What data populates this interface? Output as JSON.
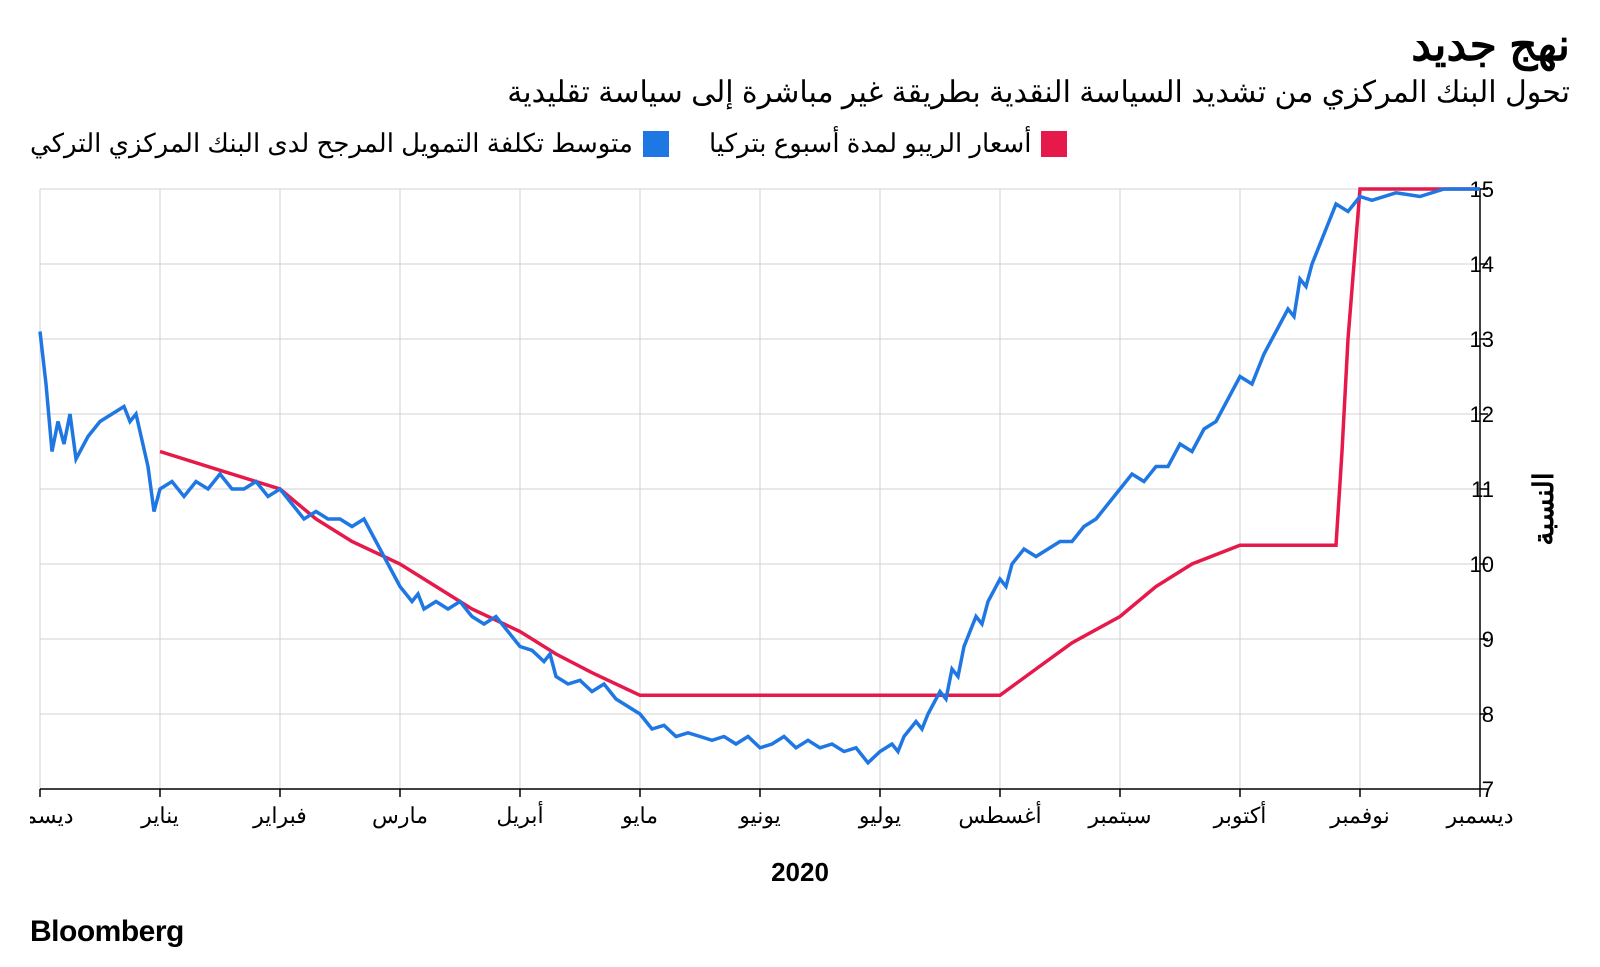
{
  "title": "نهج جديد",
  "subtitle": "تحول البنك المركزي من تشديد السياسة النقدية بطريقة غير مباشرة إلى سياسة تقليدية",
  "legend": [
    {
      "label": "أسعار الريبو لمدة أسبوع بتركيا",
      "color": "#e6194b"
    },
    {
      "label": "متوسط تكلفة التمويل المرجح لدى البنك المركزي التركي",
      "color": "#1f77e4"
    }
  ],
  "y_axis": {
    "label": "النسبة",
    "min": 7,
    "max": 15,
    "ticks": [
      7,
      8,
      9,
      10,
      11,
      12,
      13,
      14,
      15
    ],
    "label_fontsize": 28,
    "tick_fontsize": 22
  },
  "x_axis": {
    "year_label": "2020",
    "min": 0,
    "max": 12,
    "months": [
      "ديسمبر",
      "يناير",
      "فبراير",
      "مارس",
      "أبريل",
      "مايو",
      "يونيو",
      "يوليو",
      "أغسطس",
      "سبتمبر",
      "أكتوبر",
      "نوفمبر",
      "ديسمبر"
    ],
    "tick_fontsize": 22
  },
  "background_color": "#ffffff",
  "grid_color": "#d0d0d0",
  "axis_color": "#000000",
  "line_width": 3.5,
  "series": [
    {
      "name": "repo",
      "color": "#e6194b",
      "points": [
        [
          1.0,
          11.5
        ],
        [
          1.5,
          11.25
        ],
        [
          2.0,
          11.0
        ],
        [
          2.3,
          10.6
        ],
        [
          2.6,
          10.3
        ],
        [
          3.0,
          10.0
        ],
        [
          3.3,
          9.7
        ],
        [
          3.6,
          9.4
        ],
        [
          4.0,
          9.1
        ],
        [
          4.3,
          8.8
        ],
        [
          4.6,
          8.55
        ],
        [
          5.0,
          8.25
        ],
        [
          5.5,
          8.25
        ],
        [
          6.0,
          8.25
        ],
        [
          6.5,
          8.25
        ],
        [
          7.0,
          8.25
        ],
        [
          7.5,
          8.25
        ],
        [
          8.0,
          8.25
        ],
        [
          8.3,
          8.6
        ],
        [
          8.6,
          8.95
        ],
        [
          9.0,
          9.3
        ],
        [
          9.3,
          9.7
        ],
        [
          9.6,
          10.0
        ],
        [
          10.0,
          10.25
        ],
        [
          10.3,
          10.25
        ],
        [
          10.6,
          10.25
        ],
        [
          10.8,
          10.25
        ],
        [
          10.85,
          11.5
        ],
        [
          10.9,
          13.0
        ],
        [
          11.0,
          15.0
        ],
        [
          11.5,
          15.0
        ],
        [
          12.0,
          15.0
        ]
      ]
    },
    {
      "name": "wacf",
      "color": "#1f77e4",
      "points": [
        [
          0.0,
          13.1
        ],
        [
          0.05,
          12.4
        ],
        [
          0.1,
          11.5
        ],
        [
          0.15,
          11.9
        ],
        [
          0.2,
          11.6
        ],
        [
          0.25,
          12.0
        ],
        [
          0.3,
          11.4
        ],
        [
          0.4,
          11.7
        ],
        [
          0.5,
          11.9
        ],
        [
          0.6,
          12.0
        ],
        [
          0.7,
          12.1
        ],
        [
          0.75,
          11.9
        ],
        [
          0.8,
          12.0
        ],
        [
          0.9,
          11.3
        ],
        [
          0.95,
          10.7
        ],
        [
          1.0,
          11.0
        ],
        [
          1.1,
          11.1
        ],
        [
          1.2,
          10.9
        ],
        [
          1.3,
          11.1
        ],
        [
          1.4,
          11.0
        ],
        [
          1.5,
          11.2
        ],
        [
          1.6,
          11.0
        ],
        [
          1.7,
          11.0
        ],
        [
          1.8,
          11.1
        ],
        [
          1.9,
          10.9
        ],
        [
          2.0,
          11.0
        ],
        [
          2.1,
          10.8
        ],
        [
          2.2,
          10.6
        ],
        [
          2.3,
          10.7
        ],
        [
          2.4,
          10.6
        ],
        [
          2.5,
          10.6
        ],
        [
          2.6,
          10.5
        ],
        [
          2.7,
          10.6
        ],
        [
          2.8,
          10.3
        ],
        [
          2.9,
          10.0
        ],
        [
          3.0,
          9.7
        ],
        [
          3.1,
          9.5
        ],
        [
          3.15,
          9.6
        ],
        [
          3.2,
          9.4
        ],
        [
          3.3,
          9.5
        ],
        [
          3.4,
          9.4
        ],
        [
          3.5,
          9.5
        ],
        [
          3.6,
          9.3
        ],
        [
          3.7,
          9.2
        ],
        [
          3.8,
          9.3
        ],
        [
          3.9,
          9.1
        ],
        [
          4.0,
          8.9
        ],
        [
          4.1,
          8.85
        ],
        [
          4.2,
          8.7
        ],
        [
          4.25,
          8.8
        ],
        [
          4.3,
          8.5
        ],
        [
          4.4,
          8.4
        ],
        [
          4.5,
          8.45
        ],
        [
          4.6,
          8.3
        ],
        [
          4.7,
          8.4
        ],
        [
          4.8,
          8.2
        ],
        [
          4.9,
          8.1
        ],
        [
          5.0,
          8.0
        ],
        [
          5.1,
          7.8
        ],
        [
          5.2,
          7.85
        ],
        [
          5.3,
          7.7
        ],
        [
          5.4,
          7.75
        ],
        [
          5.5,
          7.7
        ],
        [
          5.6,
          7.65
        ],
        [
          5.7,
          7.7
        ],
        [
          5.8,
          7.6
        ],
        [
          5.9,
          7.7
        ],
        [
          6.0,
          7.55
        ],
        [
          6.1,
          7.6
        ],
        [
          6.2,
          7.7
        ],
        [
          6.3,
          7.55
        ],
        [
          6.4,
          7.65
        ],
        [
          6.5,
          7.55
        ],
        [
          6.6,
          7.6
        ],
        [
          6.7,
          7.5
        ],
        [
          6.8,
          7.55
        ],
        [
          6.9,
          7.35
        ],
        [
          7.0,
          7.5
        ],
        [
          7.1,
          7.6
        ],
        [
          7.15,
          7.5
        ],
        [
          7.2,
          7.7
        ],
        [
          7.3,
          7.9
        ],
        [
          7.35,
          7.8
        ],
        [
          7.4,
          8.0
        ],
        [
          7.5,
          8.3
        ],
        [
          7.55,
          8.2
        ],
        [
          7.6,
          8.6
        ],
        [
          7.65,
          8.5
        ],
        [
          7.7,
          8.9
        ],
        [
          7.8,
          9.3
        ],
        [
          7.85,
          9.2
        ],
        [
          7.9,
          9.5
        ],
        [
          8.0,
          9.8
        ],
        [
          8.05,
          9.7
        ],
        [
          8.1,
          10.0
        ],
        [
          8.2,
          10.2
        ],
        [
          8.3,
          10.1
        ],
        [
          8.4,
          10.2
        ],
        [
          8.5,
          10.3
        ],
        [
          8.6,
          10.3
        ],
        [
          8.7,
          10.5
        ],
        [
          8.8,
          10.6
        ],
        [
          8.9,
          10.8
        ],
        [
          9.0,
          11.0
        ],
        [
          9.1,
          11.2
        ],
        [
          9.2,
          11.1
        ],
        [
          9.3,
          11.3
        ],
        [
          9.4,
          11.3
        ],
        [
          9.5,
          11.6
        ],
        [
          9.6,
          11.5
        ],
        [
          9.7,
          11.8
        ],
        [
          9.8,
          11.9
        ],
        [
          9.9,
          12.2
        ],
        [
          10.0,
          12.5
        ],
        [
          10.1,
          12.4
        ],
        [
          10.2,
          12.8
        ],
        [
          10.3,
          13.1
        ],
        [
          10.4,
          13.4
        ],
        [
          10.45,
          13.3
        ],
        [
          10.5,
          13.8
        ],
        [
          10.55,
          13.7
        ],
        [
          10.6,
          14.0
        ],
        [
          10.7,
          14.4
        ],
        [
          10.8,
          14.8
        ],
        [
          10.9,
          14.7
        ],
        [
          11.0,
          14.9
        ],
        [
          11.1,
          14.85
        ],
        [
          11.3,
          14.95
        ],
        [
          11.5,
          14.9
        ],
        [
          11.7,
          15.0
        ],
        [
          12.0,
          15.0
        ]
      ]
    }
  ],
  "footer_brand": "Bloomberg"
}
